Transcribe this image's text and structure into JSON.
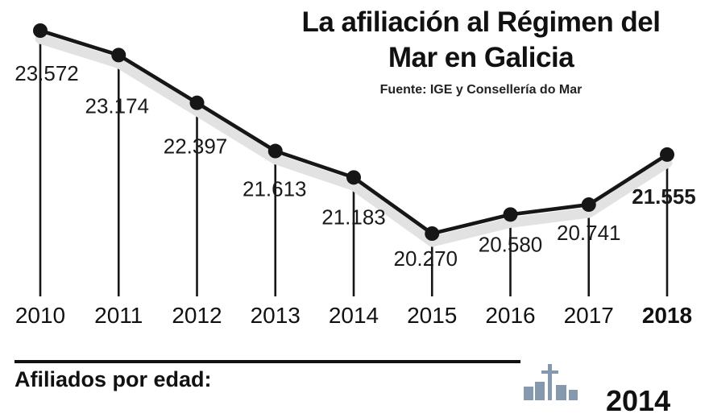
{
  "title": "La afiliación al Régimen del Mar en Galicia",
  "source": "Fuente: IGE y Consellería do Mar",
  "footer": {
    "heading": "Afiliados por edad:",
    "partial_year": "2014"
  },
  "chart_data": {
    "type": "line",
    "title": "La afiliación al Régimen del Mar en Galicia",
    "source": "Fuente: IGE y Consellería do Mar",
    "categories": [
      "2010",
      "2011",
      "2012",
      "2013",
      "2014",
      "2015",
      "2016",
      "2017",
      "2018"
    ],
    "values": [
      23572,
      23174,
      22397,
      21613,
      21183,
      20270,
      20580,
      20741,
      21555
    ],
    "point_labels": [
      "23.572",
      "23.174",
      "22.397",
      "21.613",
      "21.183",
      "20.270",
      "20.580",
      "20.741",
      "21.555"
    ],
    "emphasized_category": "2018",
    "ylim": [
      20000,
      23800
    ],
    "grid": false,
    "legend": false,
    "line_color": "#161616",
    "shadow_color": "#e2e2e2",
    "label_color": "#1a1a1a",
    "icon_color": "#8598ad"
  }
}
